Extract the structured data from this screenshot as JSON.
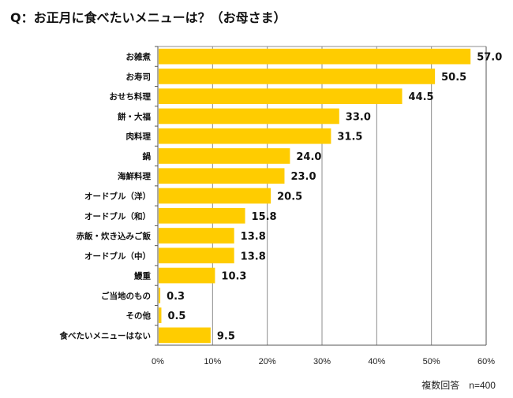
{
  "title": "Q：お正月に食べたいメニューは？（お母さま）",
  "note": "複数回答　n=400",
  "chart_data": {
    "type": "bar",
    "orientation": "horizontal",
    "title": "Q：お正月に食べたいメニューは？（お母さま）",
    "xlabel": "",
    "ylabel": "",
    "unit": "%",
    "xlim": [
      0,
      60
    ],
    "x_ticks": [
      0,
      10,
      20,
      30,
      40,
      50,
      60
    ],
    "x_tick_labels": [
      "0%",
      "10%",
      "20%",
      "30%",
      "40%",
      "50%",
      "60%"
    ],
    "grid": "vertical",
    "legend": "none",
    "bar_color": "#FFCC00",
    "categories": [
      "お雑煮",
      "お寿司",
      "おせち料理",
      "餅・大福",
      "肉料理",
      "鍋",
      "海鮮料理",
      "オードブル（洋）",
      "オードブル（和）",
      "赤飯・炊き込みご飯",
      "オードブル（中）",
      "鰻重",
      "ご当地のもの",
      "その他",
      "食べたいメニューはない"
    ],
    "values": [
      57.0,
      50.5,
      44.5,
      33.0,
      31.5,
      24.0,
      23.0,
      20.5,
      15.8,
      13.8,
      13.8,
      10.3,
      0.3,
      0.5,
      9.5
    ],
    "value_labels": [
      "57.0",
      "50.5",
      "44.5",
      "33.0",
      "31.5",
      "24.0",
      "23.0",
      "20.5",
      "15.8",
      "13.8",
      "13.8",
      "10.3",
      "0.3",
      "0.5",
      "9.5"
    ],
    "footnote": "複数回答　n=400"
  }
}
